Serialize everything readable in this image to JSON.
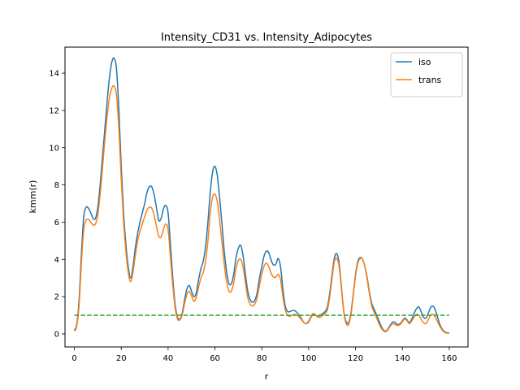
{
  "chart_data": {
    "type": "line",
    "title": "Intensity_CD31 vs. Intensity_Adipocytes",
    "xlabel": "r",
    "ylabel": "kmm(r)",
    "xlim": [
      -4,
      168
    ],
    "ylim": [
      -0.7,
      15.4
    ],
    "xticks": [
      0,
      20,
      40,
      60,
      80,
      100,
      120,
      140,
      160
    ],
    "yticks": [
      0,
      2,
      4,
      6,
      8,
      10,
      12,
      14
    ],
    "grid": false,
    "legend_position": "top-right",
    "x": [
      0,
      1,
      2,
      3,
      4,
      5,
      6,
      7,
      8,
      9,
      10,
      11,
      12,
      13,
      14,
      15,
      16,
      17,
      18,
      19,
      20,
      21,
      22,
      23,
      24,
      25,
      26,
      27,
      28,
      29,
      30,
      31,
      32,
      33,
      34,
      35,
      36,
      37,
      38,
      39,
      40,
      41,
      42,
      43,
      44,
      45,
      46,
      47,
      48,
      49,
      50,
      51,
      52,
      53,
      54,
      55,
      56,
      57,
      58,
      59,
      60,
      61,
      62,
      63,
      64,
      65,
      66,
      67,
      68,
      69,
      70,
      71,
      72,
      73,
      74,
      75,
      76,
      77,
      78,
      79,
      80,
      81,
      82,
      83,
      84,
      85,
      86,
      87,
      88,
      89,
      90,
      91,
      92,
      93,
      94,
      95,
      96,
      97,
      98,
      99,
      100,
      101,
      102,
      103,
      104,
      105,
      106,
      107,
      108,
      109,
      110,
      111,
      112,
      113,
      114,
      115,
      116,
      117,
      118,
      119,
      120,
      121,
      122,
      123,
      124,
      125,
      126,
      127,
      128,
      129,
      130,
      131,
      132,
      133,
      134,
      135,
      136,
      137,
      138,
      139,
      140,
      141,
      142,
      143,
      144,
      145,
      146,
      147,
      148,
      149,
      150,
      151,
      152,
      153,
      154,
      155,
      156,
      157,
      158,
      159,
      160
    ],
    "series": [
      {
        "name": "iso",
        "color": "#1f77b4",
        "style": "solid",
        "values": [
          0.2,
          0.5,
          1.8,
          4.3,
          6.3,
          6.8,
          6.75,
          6.5,
          6.2,
          6.2,
          6.8,
          8.0,
          9.5,
          11.0,
          12.5,
          13.8,
          14.6,
          14.8,
          14.2,
          12.0,
          9.0,
          6.5,
          4.8,
          3.6,
          3.0,
          3.6,
          4.6,
          5.4,
          6.0,
          6.5,
          7.0,
          7.6,
          7.9,
          7.9,
          7.5,
          6.8,
          6.1,
          6.2,
          6.7,
          6.9,
          6.5,
          4.8,
          3.0,
          1.6,
          0.9,
          0.8,
          1.1,
          1.8,
          2.4,
          2.6,
          2.3,
          2.0,
          2.2,
          2.9,
          3.5,
          3.9,
          4.7,
          6.0,
          7.6,
          8.7,
          9.0,
          8.5,
          7.3,
          5.9,
          4.4,
          3.3,
          2.7,
          2.7,
          3.2,
          4.1,
          4.6,
          4.75,
          4.2,
          3.2,
          2.3,
          1.85,
          1.7,
          1.8,
          2.2,
          3.0,
          3.6,
          4.2,
          4.45,
          4.35,
          3.95,
          3.7,
          3.75,
          4.05,
          3.6,
          2.4,
          1.5,
          1.2,
          1.2,
          1.25,
          1.25,
          1.15,
          1.0,
          0.8,
          0.6,
          0.55,
          0.65,
          0.9,
          1.05,
          1.0,
          0.95,
          1.0,
          1.1,
          1.2,
          1.45,
          2.2,
          3.2,
          4.1,
          4.3,
          3.8,
          2.5,
          1.2,
          0.65,
          0.6,
          1.1,
          2.1,
          3.2,
          3.9,
          4.1,
          4.0,
          3.6,
          3.0,
          2.2,
          1.6,
          1.3,
          1.0,
          0.7,
          0.4,
          0.2,
          0.15,
          0.3,
          0.5,
          0.65,
          0.6,
          0.5,
          0.55,
          0.7,
          0.85,
          0.75,
          0.6,
          0.8,
          1.1,
          1.35,
          1.45,
          1.2,
          0.9,
          0.85,
          1.1,
          1.4,
          1.5,
          1.3,
          0.9,
          0.5,
          0.25,
          0.12,
          0.06,
          0.04
        ]
      },
      {
        "name": "trans",
        "color": "#ff7f0e",
        "style": "solid",
        "values": [
          0.15,
          0.4,
          1.5,
          3.8,
          5.6,
          6.1,
          6.15,
          6.0,
          5.85,
          5.9,
          6.4,
          7.5,
          8.9,
          10.4,
          11.7,
          12.7,
          13.2,
          13.3,
          12.8,
          11.0,
          8.3,
          6.0,
          4.4,
          3.3,
          2.8,
          3.3,
          4.2,
          5.0,
          5.5,
          5.9,
          6.3,
          6.65,
          6.8,
          6.75,
          6.4,
          5.8,
          5.25,
          5.2,
          5.6,
          5.9,
          5.6,
          4.1,
          2.6,
          1.4,
          0.8,
          0.75,
          1.0,
          1.6,
          2.1,
          2.3,
          2.05,
          1.75,
          1.95,
          2.5,
          3.0,
          3.3,
          3.9,
          5.0,
          6.5,
          7.35,
          7.5,
          7.1,
          6.1,
          4.9,
          3.7,
          2.8,
          2.3,
          2.3,
          2.75,
          3.5,
          3.95,
          4.0,
          3.6,
          2.75,
          1.95,
          1.6,
          1.5,
          1.6,
          1.95,
          2.6,
          3.2,
          3.65,
          3.8,
          3.6,
          3.25,
          3.05,
          3.05,
          3.2,
          2.9,
          2.0,
          1.3,
          1.0,
          0.95,
          1.0,
          1.05,
          1.0,
          0.9,
          0.75,
          0.6,
          0.55,
          0.7,
          0.95,
          1.1,
          1.0,
          0.9,
          0.9,
          1.0,
          1.1,
          1.3,
          2.0,
          3.0,
          3.9,
          4.05,
          3.6,
          2.4,
          1.15,
          0.55,
          0.5,
          1.0,
          2.0,
          3.1,
          3.8,
          4.05,
          4.0,
          3.6,
          2.9,
          2.1,
          1.45,
          1.15,
          0.85,
          0.55,
          0.3,
          0.15,
          0.12,
          0.25,
          0.45,
          0.55,
          0.5,
          0.45,
          0.5,
          0.65,
          0.8,
          0.7,
          0.55,
          0.7,
          0.9,
          1.05,
          1.0,
          0.8,
          0.6,
          0.55,
          0.75,
          1.0,
          1.05,
          0.9,
          0.65,
          0.4,
          0.2,
          0.08,
          0.04,
          0.03
        ]
      },
      {
        "color": "#2ca02c",
        "style": "dashed",
        "values": [
          1,
          1,
          1,
          1,
          1,
          1,
          1,
          1,
          1,
          1,
          1,
          1,
          1,
          1,
          1,
          1,
          1,
          1,
          1,
          1,
          1,
          1,
          1,
          1,
          1,
          1,
          1,
          1,
          1,
          1,
          1,
          1,
          1,
          1,
          1,
          1,
          1,
          1,
          1,
          1,
          1,
          1,
          1,
          1,
          1,
          1,
          1,
          1,
          1,
          1,
          1,
          1,
          1,
          1,
          1,
          1,
          1,
          1,
          1,
          1,
          1,
          1,
          1,
          1,
          1,
          1,
          1,
          1,
          1,
          1,
          1,
          1,
          1,
          1,
          1,
          1,
          1,
          1,
          1,
          1,
          1,
          1,
          1,
          1,
          1,
          1,
          1,
          1,
          1,
          1,
          1,
          1,
          1,
          1,
          1,
          1,
          1,
          1,
          1,
          1,
          1,
          1,
          1,
          1,
          1,
          1,
          1,
          1,
          1,
          1,
          1,
          1,
          1,
          1,
          1,
          1,
          1,
          1,
          1,
          1,
          1,
          1,
          1,
          1,
          1,
          1,
          1,
          1,
          1,
          1,
          1,
          1,
          1,
          1,
          1,
          1,
          1,
          1,
          1,
          1,
          1,
          1,
          1,
          1,
          1,
          1,
          1,
          1,
          1,
          1,
          1,
          1,
          1,
          1,
          1,
          1,
          1,
          1,
          1,
          1,
          1
        ]
      }
    ]
  }
}
